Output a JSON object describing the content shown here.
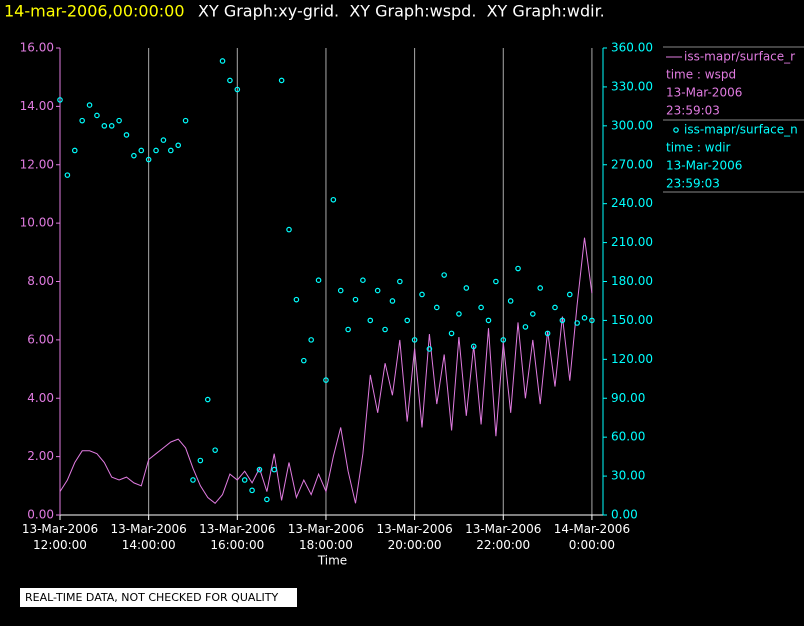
{
  "header": {
    "timestamp": "14-mar-2006,00:00:00",
    "graphs": "XY Graph:xy-grid.  XY Graph:wspd.  XY Graph:wdir."
  },
  "footer": {
    "notice": "REAL-TIME DATA, NOT CHECKED FOR QUALITY"
  },
  "chart_data": {
    "type": "xy",
    "xlabel": "Time",
    "grid": true,
    "x": [
      "2006-03-13T12:00:00",
      "2006-03-13T12:10:00",
      "2006-03-13T12:20:00",
      "2006-03-13T12:30:00",
      "2006-03-13T12:40:00",
      "2006-03-13T12:50:00",
      "2006-03-13T13:00:00",
      "2006-03-13T13:10:00",
      "2006-03-13T13:20:00",
      "2006-03-13T13:30:00",
      "2006-03-13T13:40:00",
      "2006-03-13T13:50:00",
      "2006-03-13T14:00:00",
      "2006-03-13T14:10:00",
      "2006-03-13T14:20:00",
      "2006-03-13T14:30:00",
      "2006-03-13T14:40:00",
      "2006-03-13T14:50:00",
      "2006-03-13T15:00:00",
      "2006-03-13T15:10:00",
      "2006-03-13T15:20:00",
      "2006-03-13T15:30:00",
      "2006-03-13T15:40:00",
      "2006-03-13T15:50:00",
      "2006-03-13T16:00:00",
      "2006-03-13T16:10:00",
      "2006-03-13T16:20:00",
      "2006-03-13T16:30:00",
      "2006-03-13T16:40:00",
      "2006-03-13T16:50:00",
      "2006-03-13T17:00:00",
      "2006-03-13T17:10:00",
      "2006-03-13T17:20:00",
      "2006-03-13T17:30:00",
      "2006-03-13T17:40:00",
      "2006-03-13T17:50:00",
      "2006-03-13T18:00:00",
      "2006-03-13T18:10:00",
      "2006-03-13T18:20:00",
      "2006-03-13T18:30:00",
      "2006-03-13T18:40:00",
      "2006-03-13T18:50:00",
      "2006-03-13T19:00:00",
      "2006-03-13T19:10:00",
      "2006-03-13T19:20:00",
      "2006-03-13T19:30:00",
      "2006-03-13T19:40:00",
      "2006-03-13T19:50:00",
      "2006-03-13T20:00:00",
      "2006-03-13T20:10:00",
      "2006-03-13T20:20:00",
      "2006-03-13T20:30:00",
      "2006-03-13T20:40:00",
      "2006-03-13T20:50:00",
      "2006-03-13T21:00:00",
      "2006-03-13T21:10:00",
      "2006-03-13T21:20:00",
      "2006-03-13T21:30:00",
      "2006-03-13T21:40:00",
      "2006-03-13T21:50:00",
      "2006-03-13T22:00:00",
      "2006-03-13T22:10:00",
      "2006-03-13T22:20:00",
      "2006-03-13T22:30:00",
      "2006-03-13T22:40:00",
      "2006-03-13T22:50:00",
      "2006-03-13T23:00:00",
      "2006-03-13T23:10:00",
      "2006-03-13T23:20:00",
      "2006-03-13T23:30:00",
      "2006-03-13T23:40:00",
      "2006-03-13T23:50:00",
      "2006-03-14T00:00:00"
    ],
    "xlim": [
      "2006-03-13T12:00:00",
      "2006-03-14T00:15:00"
    ],
    "xticks": [
      {
        "value": "2006-03-13T12:00:00",
        "label": "13-Mar-2006\n12:00:00"
      },
      {
        "value": "2006-03-13T14:00:00",
        "label": "13-Mar-2006\n14:00:00"
      },
      {
        "value": "2006-03-13T16:00:00",
        "label": "13-Mar-2006\n16:00:00"
      },
      {
        "value": "2006-03-13T18:00:00",
        "label": "13-Mar-2006\n18:00:00"
      },
      {
        "value": "2006-03-13T20:00:00",
        "label": "13-Mar-2006\n20:00:00"
      },
      {
        "value": "2006-03-13T22:00:00",
        "label": "13-Mar-2006\n22:00:00"
      },
      {
        "value": "2006-03-14T00:00:00",
        "label": "14-Mar-2006\n0:00:00"
      }
    ],
    "ylim": [
      0,
      16
    ],
    "yticks": [
      {
        "value": 0,
        "label": "0.00"
      },
      {
        "value": 2,
        "label": "2.00"
      },
      {
        "value": 4,
        "label": "4.00"
      },
      {
        "value": 6,
        "label": "6.00"
      },
      {
        "value": 8,
        "label": "8.00"
      },
      {
        "value": 10,
        "label": "10.00"
      },
      {
        "value": 12,
        "label": "12.00"
      },
      {
        "value": 14,
        "label": "14.00"
      },
      {
        "value": 16,
        "label": "16.00"
      }
    ],
    "y2lim": [
      0,
      360
    ],
    "y2ticks": [
      {
        "value": 0,
        "label": "0.00"
      },
      {
        "value": 30,
        "label": "30.00"
      },
      {
        "value": 60,
        "label": "60.00"
      },
      {
        "value": 90,
        "label": "90.00"
      },
      {
        "value": 120,
        "label": "120.00"
      },
      {
        "value": 150,
        "label": "150.00"
      },
      {
        "value": 180,
        "label": "180.00"
      },
      {
        "value": 210,
        "label": "210.00"
      },
      {
        "value": 240,
        "label": "240.00"
      },
      {
        "value": 270,
        "label": "270.00"
      },
      {
        "value": 300,
        "label": "300.00"
      },
      {
        "value": 330,
        "label": "330.00"
      },
      {
        "value": 360,
        "label": "360.00"
      }
    ],
    "series": [
      {
        "name": "iss-mapr/surface_r",
        "details": [
          "time : wspd",
          "13-Mar-2006",
          "23:59:03"
        ],
        "style": "line",
        "color": "#e07be0",
        "axis": "y",
        "values": [
          0.8,
          1.2,
          1.8,
          2.2,
          2.2,
          2.1,
          1.8,
          1.3,
          1.2,
          1.3,
          1.1,
          1.0,
          1.9,
          2.1,
          2.3,
          2.5,
          2.6,
          2.3,
          1.6,
          1.0,
          0.6,
          0.4,
          0.7,
          1.4,
          1.2,
          1.5,
          1.1,
          1.6,
          0.8,
          2.1,
          0.5,
          1.8,
          0.6,
          1.2,
          0.7,
          1.4,
          0.8,
          2.0,
          3.0,
          1.5,
          0.4,
          2.1,
          4.8,
          3.5,
          5.2,
          4.1,
          6.0,
          3.2,
          5.7,
          3.0,
          6.2,
          3.8,
          5.5,
          2.9,
          6.1,
          3.4,
          5.8,
          3.1,
          6.4,
          2.7,
          5.9,
          3.5,
          6.6,
          4.0,
          6.0,
          3.8,
          6.3,
          4.4,
          6.8,
          4.6,
          7.2,
          9.5,
          7.6
        ]
      },
      {
        "name": "iss-mapr/surface_n",
        "details": [
          "time : wdir",
          "13-Mar-2006",
          "23:59:03"
        ],
        "style": "points",
        "color": "#00ffff",
        "axis": "y2",
        "values": [
          320,
          262,
          281,
          304,
          316,
          308,
          300,
          300,
          304,
          293,
          277,
          281,
          274,
          281,
          289,
          281,
          285,
          304,
          27,
          42,
          89,
          50,
          350,
          335,
          328,
          27,
          19,
          35,
          12,
          35,
          335,
          220,
          166,
          119,
          135,
          181,
          104,
          243,
          173,
          143,
          166,
          181,
          150,
          173,
          143,
          165,
          180,
          150,
          135,
          170,
          128,
          160,
          185,
          140,
          155,
          175,
          130,
          160,
          150,
          180,
          135,
          165,
          190,
          145,
          155,
          175,
          140,
          160,
          150,
          170,
          148,
          152,
          150
        ]
      }
    ]
  }
}
